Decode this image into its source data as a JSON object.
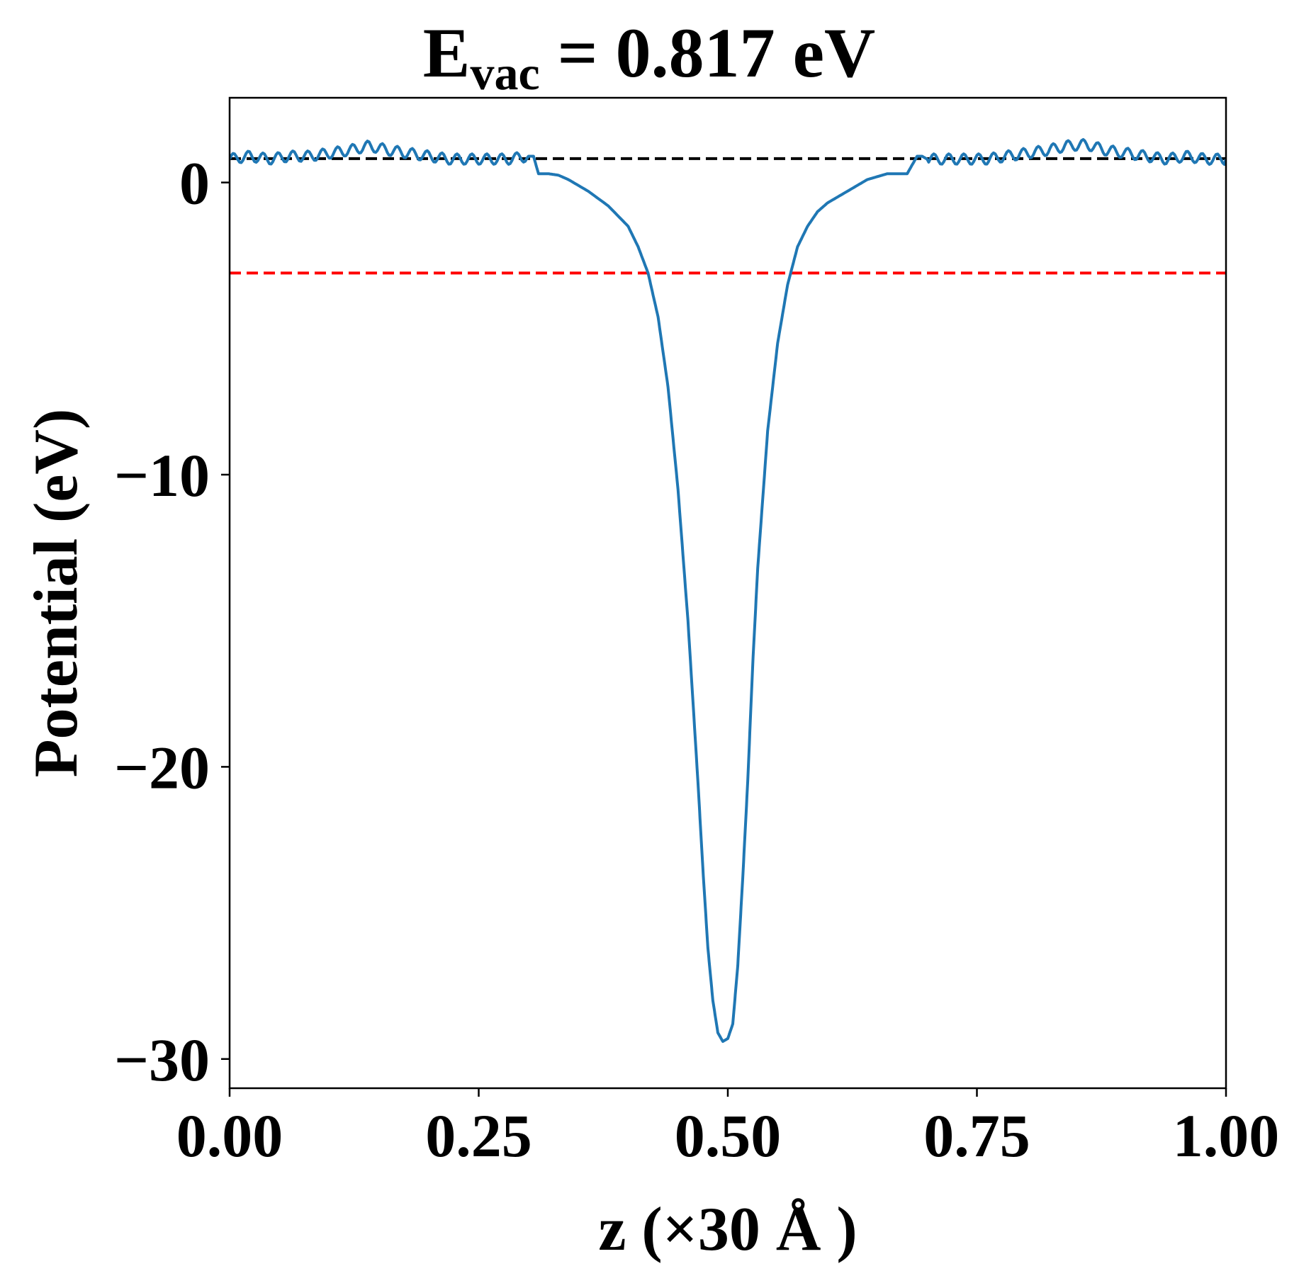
{
  "chart_data": {
    "type": "line",
    "title": {
      "main": "E",
      "subscript": "vac",
      "rest": " = 0.817 eV"
    },
    "xlabel": "z (×30 Å )",
    "ylabel": "Potential (eV)",
    "xlim": [
      0.0,
      1.0
    ],
    "ylim": [
      -31.0,
      2.9
    ],
    "xticks": [
      0.0,
      0.25,
      0.5,
      0.75,
      1.0
    ],
    "xtick_labels": [
      "0.00",
      "0.25",
      "0.50",
      "0.75",
      "1.00"
    ],
    "yticks": [
      0,
      -10,
      -20,
      -30
    ],
    "ytick_labels": [
      "0",
      "−10",
      "−20",
      "−30"
    ],
    "grid": false,
    "reference_lines": [
      {
        "y": 0.817,
        "color": "#000000",
        "style": "dashed"
      },
      {
        "y": -3.1,
        "color": "#ff0000",
        "style": "dashed"
      }
    ],
    "series": [
      {
        "color": "#1f77b4",
        "x": [
          0.0,
          0.02,
          0.04,
          0.06,
          0.08,
          0.1,
          0.12,
          0.14,
          0.16,
          0.18,
          0.2,
          0.22,
          0.24,
          0.26,
          0.28,
          0.3,
          0.305,
          0.31,
          0.32,
          0.33,
          0.34,
          0.35,
          0.36,
          0.38,
          0.4,
          0.41,
          0.42,
          0.43,
          0.44,
          0.45,
          0.46,
          0.47,
          0.475,
          0.48,
          0.485,
          0.49,
          0.495,
          0.5,
          0.505,
          0.51,
          0.515,
          0.52,
          0.525,
          0.53,
          0.54,
          0.55,
          0.56,
          0.57,
          0.58,
          0.59,
          0.6,
          0.62,
          0.64,
          0.65,
          0.66,
          0.67,
          0.68,
          0.69,
          0.695,
          0.7,
          0.72,
          0.74,
          0.76,
          0.78,
          0.8,
          0.82,
          0.84,
          0.86,
          0.88,
          0.9,
          0.92,
          0.94,
          0.96,
          0.98,
          1.0
        ],
        "y": [
          0.8,
          0.9,
          0.8,
          0.9,
          0.9,
          1.0,
          1.1,
          1.25,
          1.1,
          1.0,
          0.9,
          0.8,
          0.8,
          0.8,
          0.8,
          0.9,
          0.9,
          0.3,
          0.3,
          0.25,
          0.1,
          -0.1,
          -0.3,
          -0.8,
          -1.5,
          -2.2,
          -3.1,
          -4.6,
          -7.0,
          -10.5,
          -15.0,
          -20.5,
          -23.5,
          -26.2,
          -28.0,
          -29.1,
          -29.4,
          -29.3,
          -28.8,
          -26.8,
          -23.8,
          -20.5,
          -16.5,
          -13.2,
          -8.5,
          -5.5,
          -3.5,
          -2.2,
          -1.5,
          -1.0,
          -0.7,
          -0.3,
          0.1,
          0.2,
          0.3,
          0.3,
          0.3,
          0.9,
          0.9,
          0.8,
          0.8,
          0.8,
          0.8,
          0.9,
          1.0,
          1.1,
          1.25,
          1.3,
          1.1,
          1.0,
          0.9,
          0.8,
          0.9,
          0.8,
          0.8
        ]
      }
    ]
  }
}
